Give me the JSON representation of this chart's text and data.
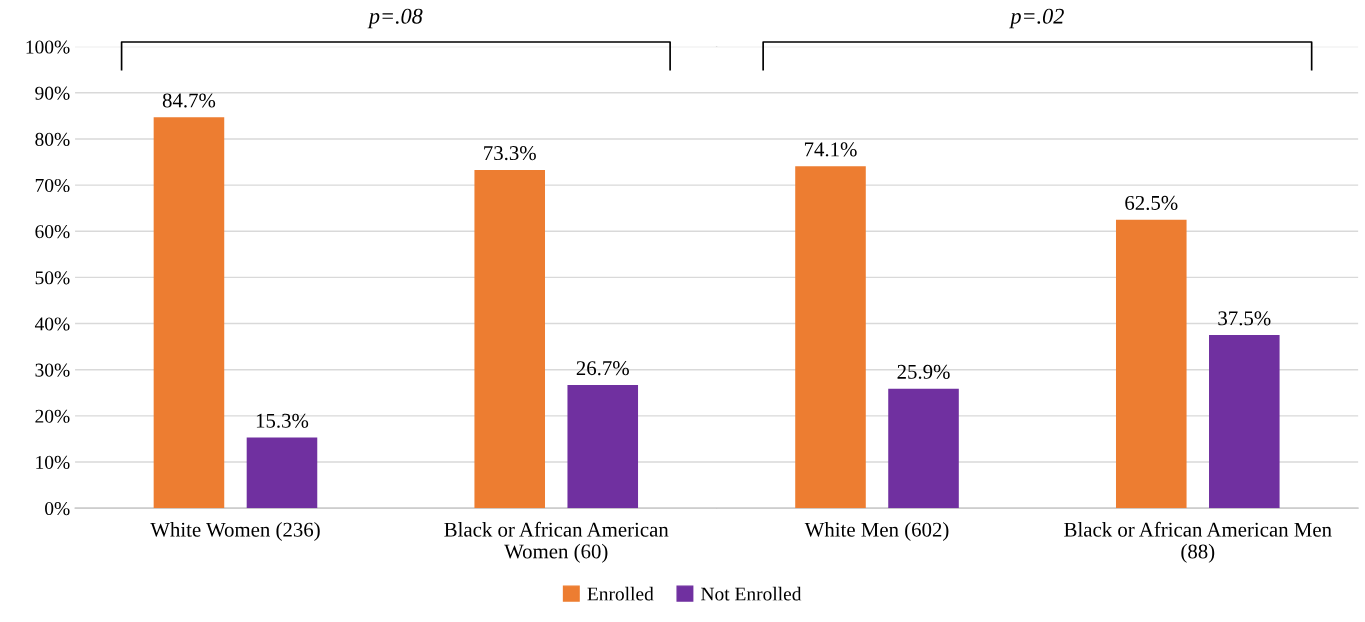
{
  "chart_data": {
    "type": "bar",
    "categories": [
      "White Women (236)",
      "Black or African American\nWomen (60)",
      "White Men (602)",
      "Black or African American Men\n(88)"
    ],
    "series": [
      {
        "name": "Enrolled",
        "color": "#ed7d31",
        "values": [
          84.7,
          73.3,
          74.1,
          62.5
        ],
        "value_labels": [
          "84.7%",
          "73.3%",
          "74.1%",
          "62.5%"
        ]
      },
      {
        "name": "Not Enrolled",
        "color": "#7030a0",
        "values": [
          15.3,
          26.7,
          25.9,
          37.5
        ],
        "value_labels": [
          "15.3%",
          "26.7%",
          "25.9%",
          "37.5%"
        ]
      }
    ],
    "ylim": [
      0,
      100
    ],
    "yticks": [
      {
        "value": 0,
        "label": "0%"
      },
      {
        "value": 10,
        "label": "10%"
      },
      {
        "value": 20,
        "label": "20%"
      },
      {
        "value": 30,
        "label": "30%"
      },
      {
        "value": 40,
        "label": "40%"
      },
      {
        "value": 50,
        "label": "50%"
      },
      {
        "value": 60,
        "label": "60%"
      },
      {
        "value": 70,
        "label": "70%"
      },
      {
        "value": 80,
        "label": "80%"
      },
      {
        "value": 90,
        "label": "90%"
      },
      {
        "value": 100,
        "label": "100%"
      }
    ],
    "grid": "y",
    "legend": "bottom",
    "annotations": [
      "p=.08",
      "p=.02"
    ]
  }
}
